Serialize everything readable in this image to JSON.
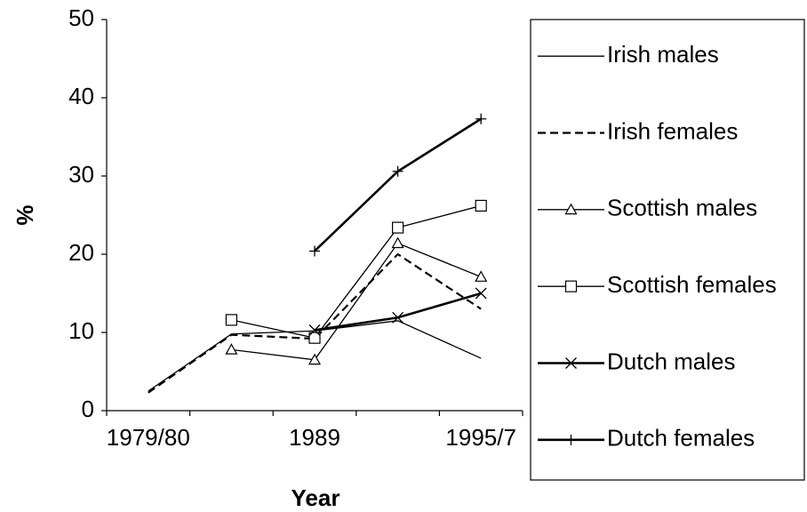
{
  "chart_data": {
    "type": "line",
    "xlabel": "Year",
    "ylabel": "%",
    "categories": [
      "1979/80",
      null,
      "1989",
      null,
      "1995/7"
    ],
    "ylim": [
      0,
      50
    ],
    "yticks": [
      0,
      10,
      20,
      30,
      40,
      50
    ],
    "series": [
      {
        "name": "Irish males",
        "color": "#000000",
        "width": 1.3,
        "dash": false,
        "marker": "none",
        "values": [
          2.5,
          9.8,
          10.2,
          11.5,
          6.7
        ]
      },
      {
        "name": "Irish females",
        "color": "#000000",
        "width": 2.2,
        "dash": true,
        "marker": "none",
        "values": [
          2.3,
          9.7,
          9.2,
          20.0,
          13.0
        ]
      },
      {
        "name": "Scottish males",
        "color": "#000000",
        "width": 1.3,
        "dash": false,
        "marker": "triangle",
        "values": [
          null,
          7.8,
          6.5,
          21.4,
          17.1
        ]
      },
      {
        "name": "Scottish females",
        "color": "#000000",
        "width": 1.3,
        "dash": false,
        "marker": "square",
        "values": [
          null,
          11.6,
          9.3,
          23.4,
          26.2
        ]
      },
      {
        "name": "Dutch males",
        "color": "#000000",
        "width": 2.6,
        "dash": false,
        "marker": "x",
        "values": [
          null,
          null,
          10.3,
          11.9,
          15.0
        ]
      },
      {
        "name": "Dutch females",
        "color": "#000000",
        "width": 2.6,
        "dash": false,
        "marker": "plus",
        "values": [
          null,
          null,
          20.4,
          30.6,
          37.3
        ]
      }
    ]
  }
}
